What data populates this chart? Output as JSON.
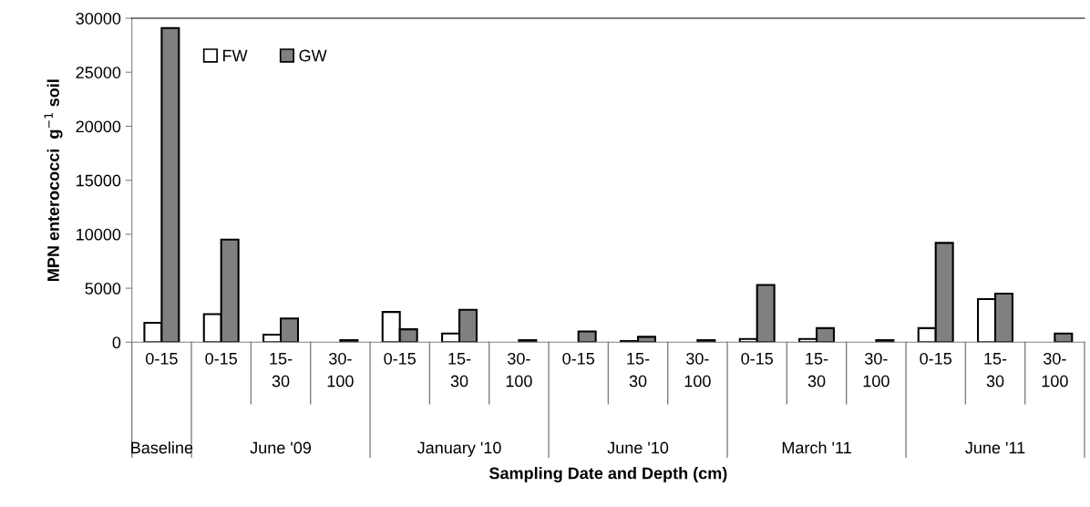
{
  "chart_data": {
    "type": "bar",
    "xlabel": "Sampling Date and Depth (cm)",
    "ylabel": "MPN enterococci  g$^{−1}$ soil",
    "categories": [
      "0-15",
      "0-15",
      "15-30",
      "30-100",
      "0-15",
      "15-30",
      "30-100",
      "0-15",
      "15-30",
      "30-100",
      "0-15",
      "15-30",
      "30-100",
      "0-15",
      "15-30",
      "30-100"
    ],
    "series": [
      {
        "name": "FW",
        "color": "#ffffff",
        "values": [
          1800,
          2600,
          700,
          null,
          2800,
          800,
          null,
          null,
          100,
          null,
          300,
          300,
          null,
          1300,
          4000,
          null
        ]
      },
      {
        "name": "GW",
        "color": "#808080",
        "values": [
          29100,
          9500,
          2200,
          200,
          1200,
          3000,
          200,
          1000,
          500,
          200,
          5300,
          1300,
          200,
          9200,
          4500,
          800
        ]
      }
    ],
    "annotations": [
      "Baseline",
      "June '09",
      "January '10",
      "June '10",
      "March '11",
      "June '11"
    ],
    "ylim": [
      0,
      30000
    ],
    "yticks": [
      0,
      5000,
      10000,
      15000,
      20000,
      25000,
      30000
    ],
    "legend": "top left"
  }
}
